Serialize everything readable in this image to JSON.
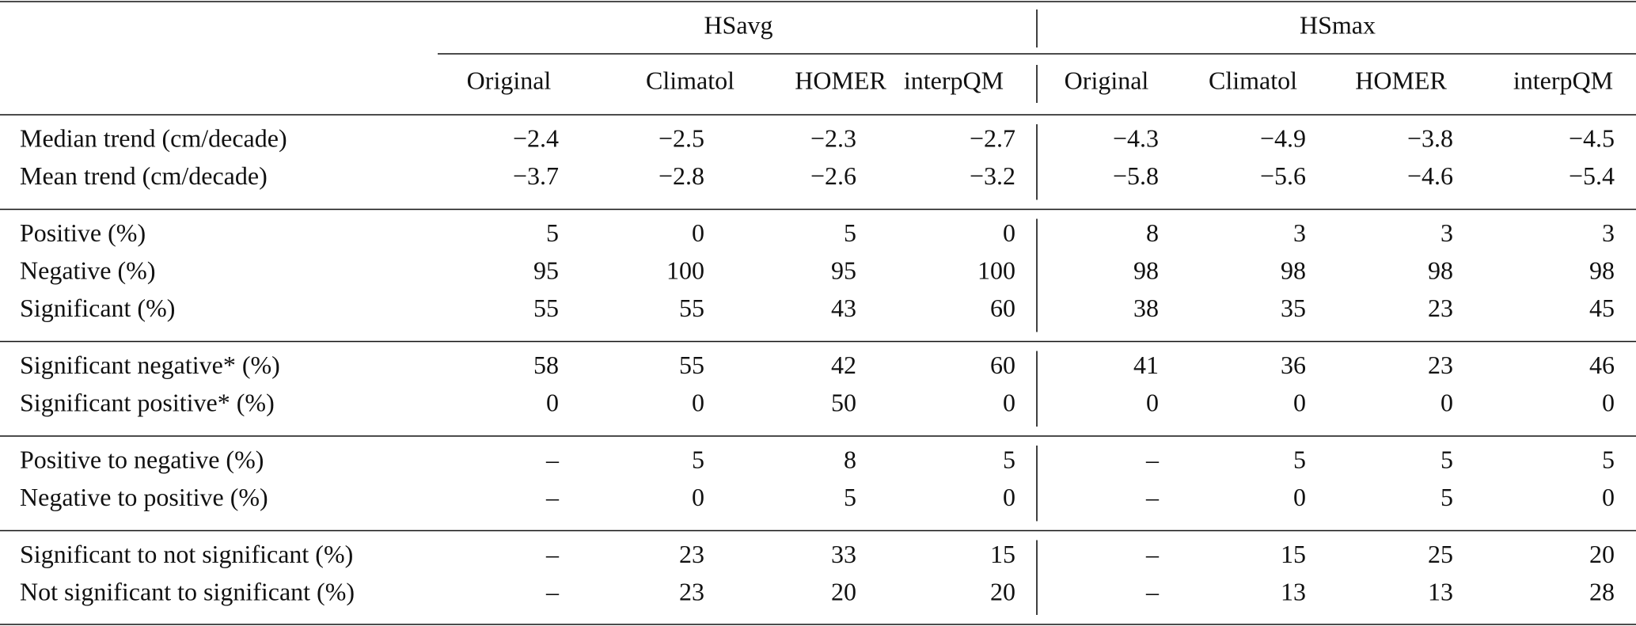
{
  "header": {
    "groups": [
      "HSavg",
      "HSmax"
    ],
    "columns": [
      "Original",
      "Climatol",
      "HOMER",
      "interpQM",
      "Original",
      "Climatol",
      "HOMER",
      "interpQM"
    ]
  },
  "table": {
    "groups": [
      {
        "rows": [
          {
            "label": "Median trend (cm/decade)",
            "values": [
              "−2.4",
              "−2.5",
              "−2.3",
              "−2.7",
              "−4.3",
              "−4.9",
              "−3.8",
              "−4.5"
            ]
          },
          {
            "label": "Mean trend (cm/decade)",
            "values": [
              "−3.7",
              "−2.8",
              "−2.6",
              "−3.2",
              "−5.8",
              "−5.6",
              "−4.6",
              "−5.4"
            ]
          }
        ]
      },
      {
        "rows": [
          {
            "label": "Positive (%)",
            "values": [
              "5",
              "0",
              "5",
              "0",
              "8",
              "3",
              "3",
              "3"
            ]
          },
          {
            "label": "Negative (%)",
            "values": [
              "95",
              "100",
              "95",
              "100",
              "98",
              "98",
              "98",
              "98"
            ]
          },
          {
            "label": "Significant (%)",
            "values": [
              "55",
              "55",
              "43",
              "60",
              "38",
              "35",
              "23",
              "45"
            ]
          }
        ]
      },
      {
        "rows": [
          {
            "label": "Significant negative* (%)",
            "values": [
              "58",
              "55",
              "42",
              "60",
              "41",
              "36",
              "23",
              "46"
            ]
          },
          {
            "label": "Significant positive* (%)",
            "values": [
              "0",
              "0",
              "50",
              "0",
              "0",
              "0",
              "0",
              "0"
            ]
          }
        ]
      },
      {
        "rows": [
          {
            "label": "Positive to negative (%)",
            "values": [
              "–",
              "5",
              "8",
              "5",
              "–",
              "5",
              "5",
              "5"
            ]
          },
          {
            "label": "Negative to positive (%)",
            "values": [
              "–",
              "0",
              "5",
              "0",
              "–",
              "0",
              "5",
              "0"
            ]
          }
        ]
      },
      {
        "rows": [
          {
            "label": "Significant to not significant (%)",
            "values": [
              "–",
              "23",
              "33",
              "15",
              "–",
              "15",
              "25",
              "20"
            ]
          },
          {
            "label": "Not significant to significant (%)",
            "values": [
              "–",
              "23",
              "20",
              "20",
              "–",
              "13",
              "13",
              "28"
            ]
          }
        ]
      }
    ]
  }
}
